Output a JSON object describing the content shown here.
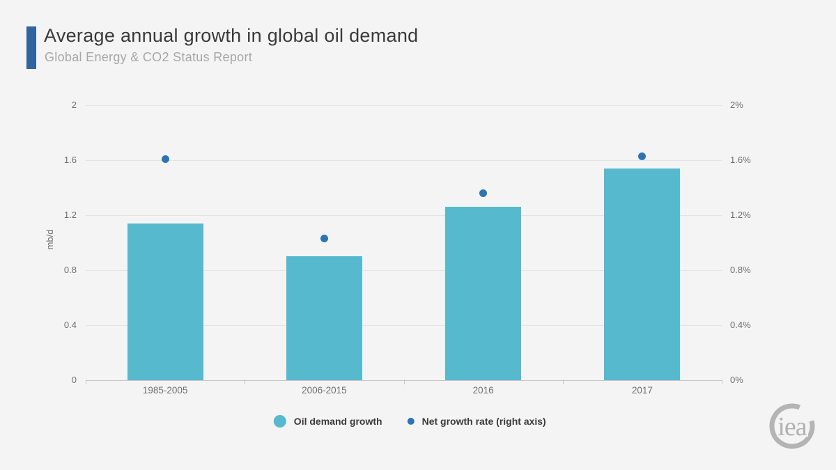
{
  "header": {
    "title": "Average annual growth in global oil demand",
    "subtitle": "Global Energy & CO2 Status Report",
    "accent_color": "#31639f"
  },
  "chart_data": {
    "type": "bar",
    "title": "Average annual growth in global oil demand",
    "subtitle": "Global Energy & CO2 Status Report",
    "categories": [
      "1985-2005",
      "2006-2015",
      "2016",
      "2017"
    ],
    "series": [
      {
        "name": "Oil demand growth",
        "type": "bar",
        "axis": "left",
        "color": "#57b9ce",
        "values": [
          1.14,
          0.9,
          1.26,
          1.54
        ]
      },
      {
        "name": "Net growth rate (right axis)",
        "type": "scatter",
        "axis": "right",
        "color": "#2d74b5",
        "values": [
          1.61,
          1.03,
          1.36,
          1.63
        ]
      }
    ],
    "ylabel": "mb/d",
    "left_axis": {
      "min": 0,
      "max": 2,
      "ticks": [
        0,
        0.4,
        0.8,
        1.2,
        1.6,
        2
      ],
      "labels": [
        "0",
        "0.4",
        "0.8",
        "1.2",
        "1.6",
        "2"
      ]
    },
    "right_axis": {
      "min": 0,
      "max": 2,
      "ticks": [
        0,
        0.4,
        0.8,
        1.2,
        1.6,
        2
      ],
      "labels": [
        "0%",
        "0.4%",
        "0.8%",
        "1.2%",
        "1.6%",
        "2%"
      ]
    },
    "grid": true,
    "legend_position": "bottom"
  },
  "logo": {
    "text": "iea",
    "color": "#b2b2b2"
  }
}
